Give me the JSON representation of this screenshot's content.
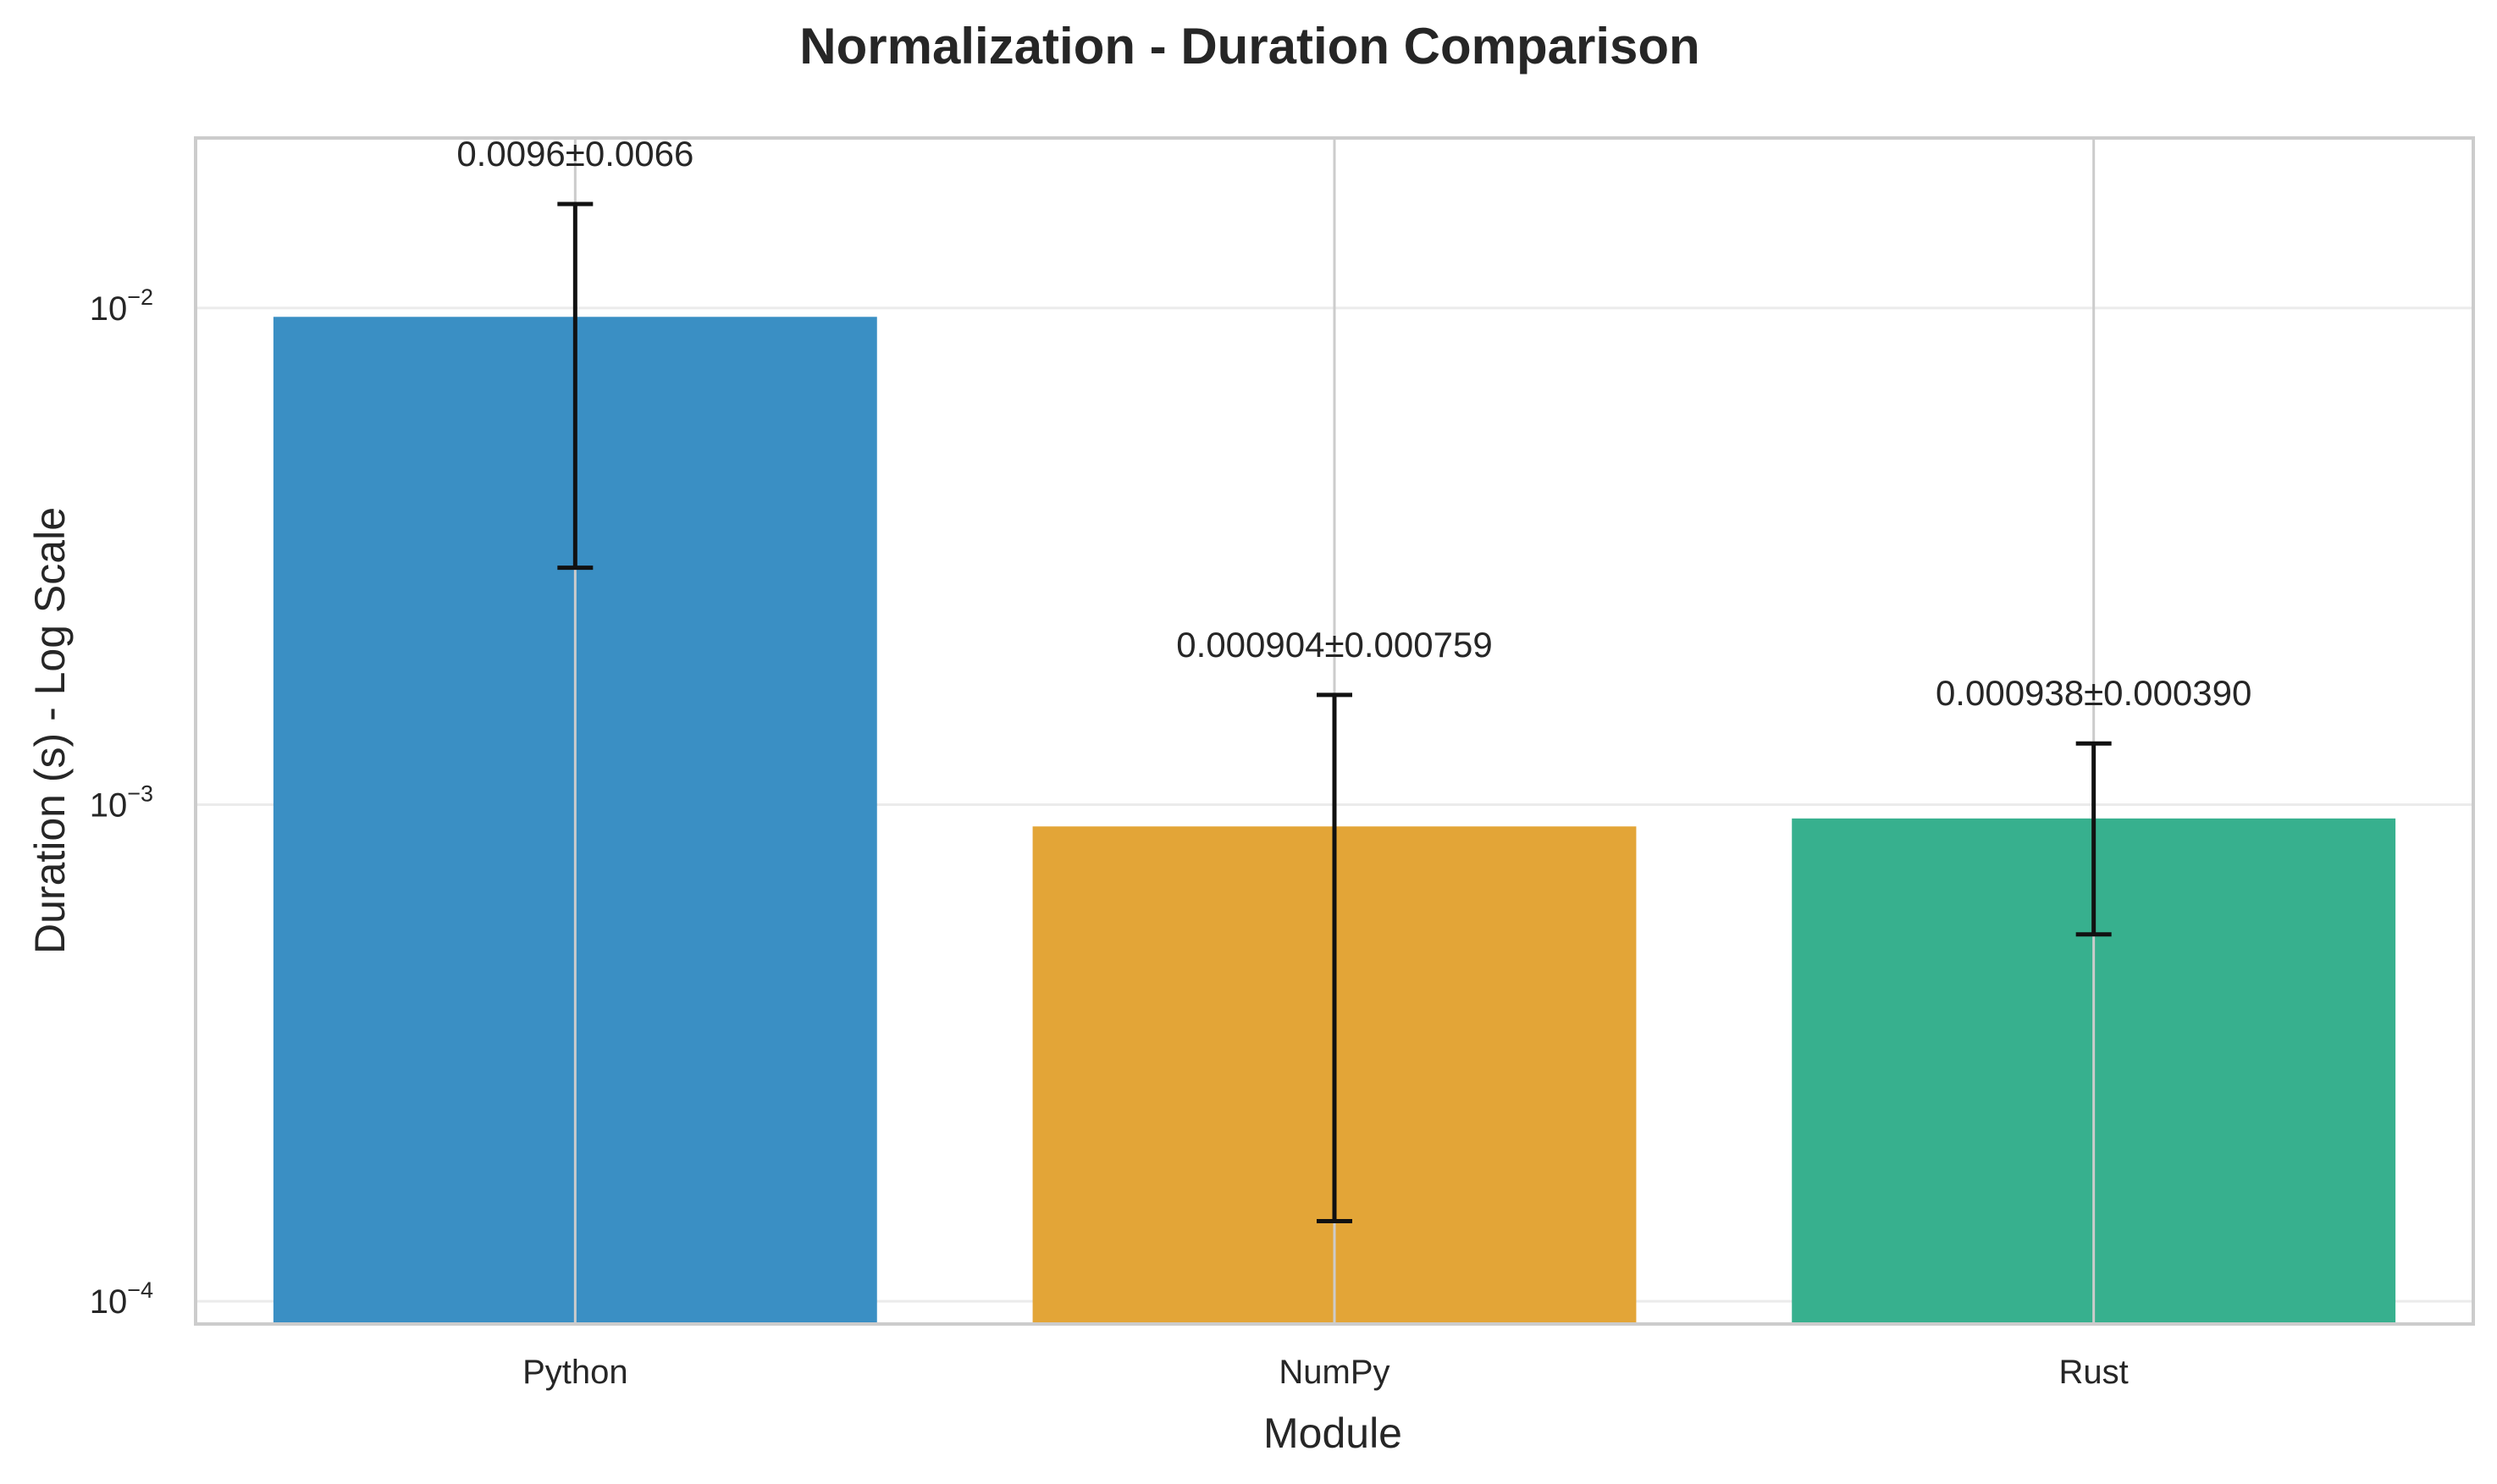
{
  "chart_data": {
    "type": "bar",
    "title": "Normalization - Duration Comparison",
    "xlabel": "Module",
    "ylabel": "Duration (s) - Log Scale",
    "y_scale": "log",
    "ylim": [
      9e-05,
      0.022
    ],
    "y_ticks": [
      {
        "value": 0.0001,
        "base": "10",
        "exp": "−4"
      },
      {
        "value": 0.001,
        "base": "10",
        "exp": "−3"
      },
      {
        "value": 0.01,
        "base": "10",
        "exp": "−2"
      }
    ],
    "grid": true,
    "categories": [
      "Python",
      "NumPy",
      "Rust"
    ],
    "values": [
      0.0096,
      0.000904,
      0.000938
    ],
    "errors": [
      0.0066,
      0.000759,
      0.00039
    ],
    "value_labels": [
      "0.0096±0.0066",
      "0.000904±0.000759",
      "0.000938±0.000390"
    ],
    "colors": [
      "#3a8fc4",
      "#e3a537",
      "#37b08e"
    ]
  }
}
